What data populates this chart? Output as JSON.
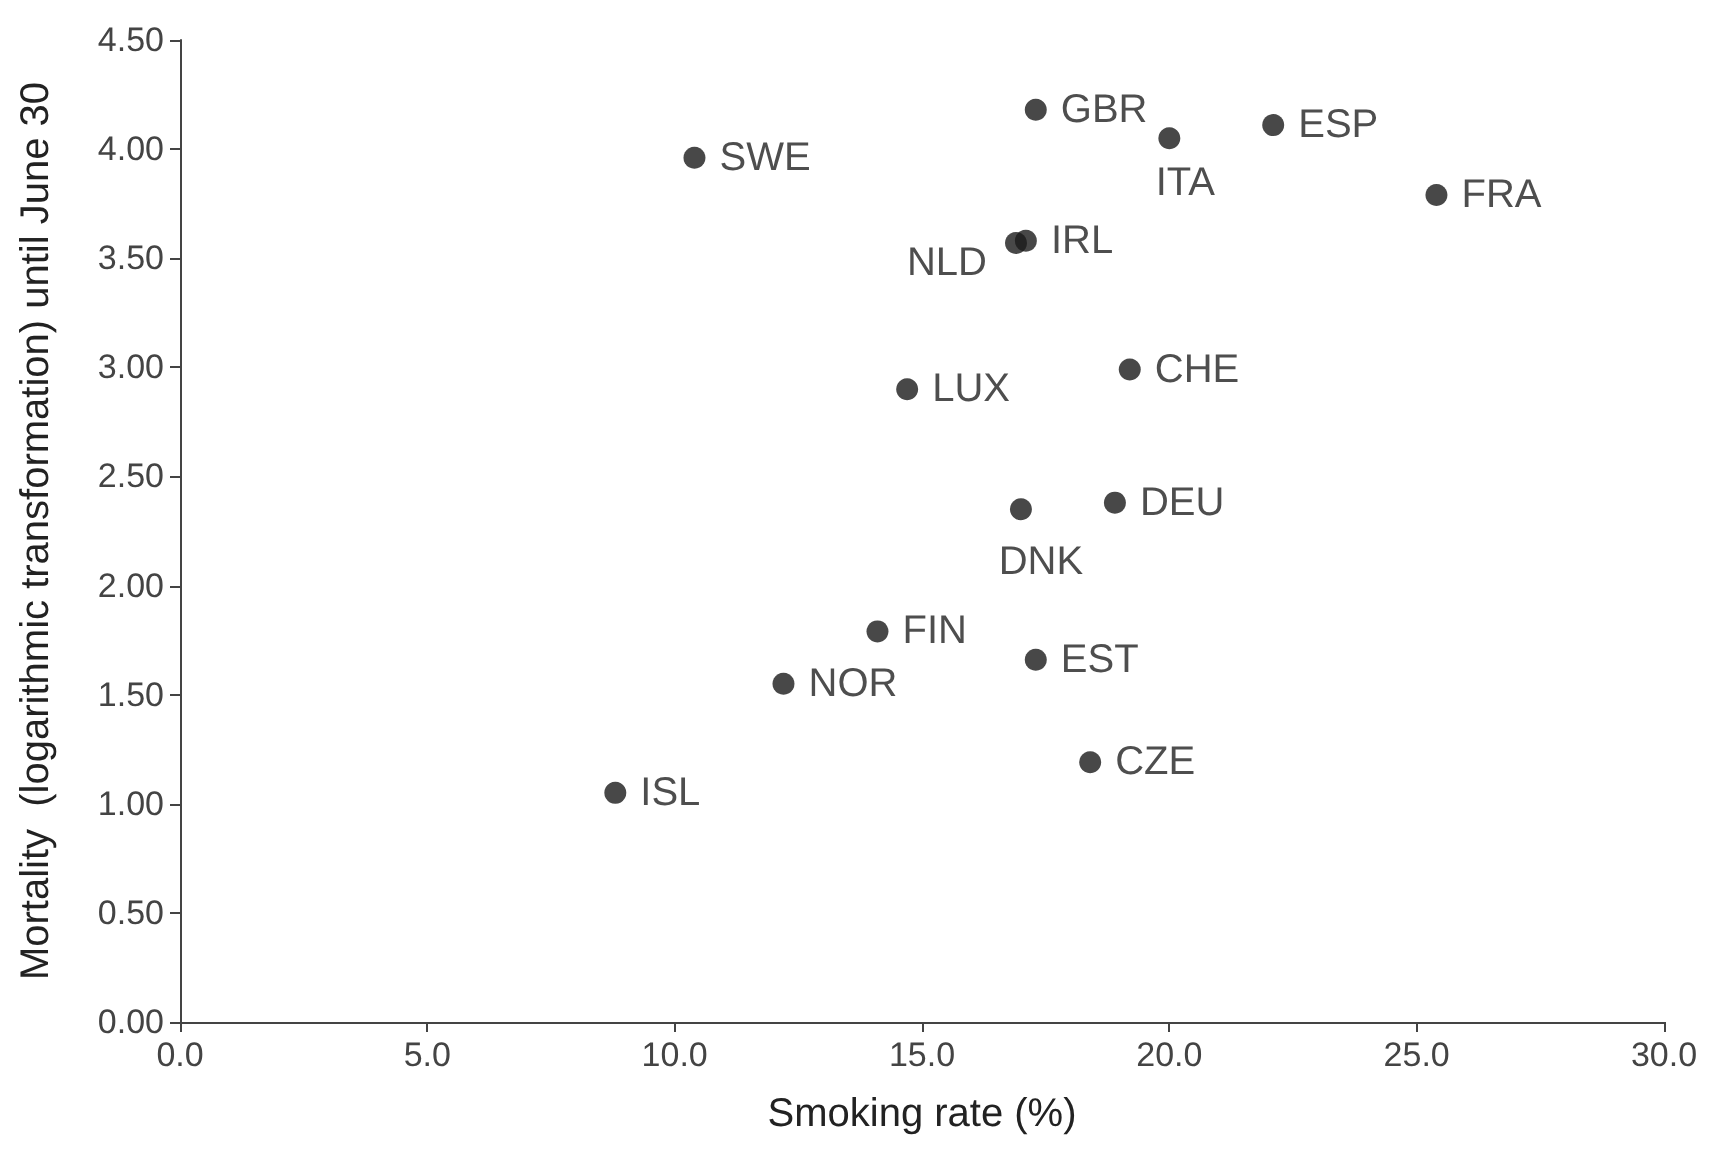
{
  "chart_data": {
    "type": "scatter",
    "xlabel": "Smoking rate (%)",
    "ylabel": "Mortality  (logarithmic transformation) until June 30",
    "x": [
      10.4,
      17.3,
      20.0,
      22.1,
      25.4,
      16.9,
      17.1,
      14.7,
      19.2,
      18.9,
      17.0,
      14.1,
      17.3,
      12.2,
      18.4,
      8.8
    ],
    "values": [
      3.96,
      4.18,
      4.05,
      4.11,
      3.79,
      3.57,
      3.58,
      2.9,
      2.99,
      2.38,
      2.35,
      1.79,
      1.66,
      1.55,
      1.19,
      1.05
    ],
    "value_labels": [
      "SWE",
      "GBR",
      "ITA",
      "ESP",
      "FRA",
      "NLD",
      "IRL",
      "LUX",
      "CHE",
      "DEU",
      "DNK",
      "FIN",
      "EST",
      "NOR",
      "CZE",
      "ISL"
    ],
    "color": "#1a1a1a",
    "marker": "circle",
    "xlim": [
      0,
      30
    ],
    "xticks": [
      {
        "value": 0,
        "label": "0.0"
      },
      {
        "value": 5,
        "label": "5.0"
      },
      {
        "value": 10,
        "label": "10.0"
      },
      {
        "value": 15,
        "label": "15.0"
      },
      {
        "value": 20,
        "label": "20.0"
      },
      {
        "value": 25,
        "label": "25.0"
      },
      {
        "value": 30,
        "label": "30.0"
      }
    ],
    "ylim": [
      0,
      4.5
    ],
    "yticks": [
      {
        "value": 0,
        "label": "0.00"
      },
      {
        "value": 0.5,
        "label": "0.50"
      },
      {
        "value": 1,
        "label": "1.00"
      },
      {
        "value": 1.5,
        "label": "1.50"
      },
      {
        "value": 2,
        "label": "2.00"
      },
      {
        "value": 2.5,
        "label": "2.50"
      },
      {
        "value": 3,
        "label": "3.00"
      },
      {
        "value": 3.5,
        "label": "3.50"
      },
      {
        "value": 4,
        "label": "4.00"
      },
      {
        "value": 4.5,
        "label": "4.50"
      }
    ],
    "grid": false
  }
}
